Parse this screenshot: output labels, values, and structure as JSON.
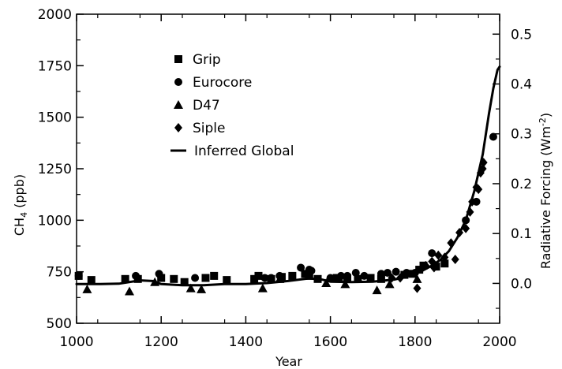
{
  "chart_data": {
    "type": "scatter",
    "title": "",
    "xlabel": "Year",
    "ylabel_main": "CH",
    "ylabel_sub": "4",
    "ylabel_unit": " (ppb)",
    "y2label_main": "Radiative Forcing (Wm",
    "y2label_sup": "-2",
    "y2label_end": ")",
    "xlim": [
      1000,
      2000
    ],
    "ylim": [
      500,
      2000
    ],
    "y2lim": [
      -0.08,
      0.54
    ],
    "xticks": [
      "1000",
      "1200",
      "1400",
      "1600",
      "1800",
      "2000"
    ],
    "xtick_values": [
      1000,
      1200,
      1400,
      1600,
      1800,
      2000
    ],
    "yticks": [
      "500",
      "750",
      "1000",
      "1250",
      "1500",
      "1750",
      "2000"
    ],
    "ytick_values": [
      500,
      750,
      1000,
      1250,
      1500,
      1750,
      2000
    ],
    "y2ticks": [
      "0.0",
      "0.1",
      "0.2",
      "0.3",
      "0.4",
      "0.5"
    ],
    "y2tick_values": [
      0.0,
      0.1,
      0.2,
      0.3,
      0.4,
      0.5
    ],
    "legend_position": "top-left",
    "grid": false,
    "series": [
      {
        "name": "Grip",
        "marker": "square",
        "points": [
          [
            1005,
            730
          ],
          [
            1035,
            710
          ],
          [
            1115,
            715
          ],
          [
            1145,
            715
          ],
          [
            1200,
            720
          ],
          [
            1230,
            715
          ],
          [
            1255,
            700
          ],
          [
            1305,
            720
          ],
          [
            1325,
            730
          ],
          [
            1355,
            710
          ],
          [
            1420,
            715
          ],
          [
            1430,
            730
          ],
          [
            1460,
            715
          ],
          [
            1485,
            725
          ],
          [
            1510,
            730
          ],
          [
            1540,
            740
          ],
          [
            1550,
            730
          ],
          [
            1570,
            715
          ],
          [
            1615,
            720
          ],
          [
            1620,
            720
          ],
          [
            1640,
            720
          ],
          [
            1665,
            715
          ],
          [
            1695,
            720
          ],
          [
            1720,
            715
          ],
          [
            1775,
            735
          ],
          [
            1795,
            740
          ],
          [
            1810,
            760
          ],
          [
            1820,
            780
          ],
          [
            1850,
            775
          ],
          [
            1870,
            790
          ]
        ]
      },
      {
        "name": "Eurocore",
        "marker": "circle",
        "points": [
          [
            1005,
            730
          ],
          [
            1140,
            730
          ],
          [
            1195,
            740
          ],
          [
            1280,
            720
          ],
          [
            1445,
            720
          ],
          [
            1460,
            720
          ],
          [
            1480,
            730
          ],
          [
            1530,
            770
          ],
          [
            1550,
            760
          ],
          [
            1555,
            755
          ],
          [
            1600,
            720
          ],
          [
            1625,
            730
          ],
          [
            1640,
            730
          ],
          [
            1660,
            745
          ],
          [
            1680,
            730
          ],
          [
            1720,
            740
          ],
          [
            1735,
            745
          ],
          [
            1755,
            750
          ],
          [
            1780,
            745
          ],
          [
            1800,
            745
          ],
          [
            1840,
            840
          ],
          [
            1920,
            1000
          ],
          [
            1945,
            1090
          ],
          [
            1985,
            1405
          ]
        ]
      },
      {
        "name": "D47",
        "marker": "triangle",
        "points": [
          [
            1025,
            665
          ],
          [
            1125,
            655
          ],
          [
            1185,
            700
          ],
          [
            1270,
            670
          ],
          [
            1295,
            665
          ],
          [
            1440,
            670
          ],
          [
            1480,
            715
          ],
          [
            1590,
            695
          ],
          [
            1635,
            690
          ],
          [
            1710,
            660
          ],
          [
            1740,
            690
          ],
          [
            1805,
            715
          ]
        ]
      },
      {
        "name": "Siple",
        "marker": "diamond",
        "points": [
          [
            1745,
            720
          ],
          [
            1765,
            720
          ],
          [
            1780,
            740
          ],
          [
            1805,
            670
          ],
          [
            1825,
            780
          ],
          [
            1840,
            800
          ],
          [
            1845,
            770
          ],
          [
            1855,
            830
          ],
          [
            1870,
            820
          ],
          [
            1885,
            890
          ],
          [
            1895,
            810
          ],
          [
            1905,
            940
          ],
          [
            1920,
            960
          ],
          [
            1930,
            1040
          ],
          [
            1935,
            1090
          ],
          [
            1945,
            1160
          ],
          [
            1950,
            1150
          ],
          [
            1955,
            1230
          ],
          [
            1960,
            1250
          ],
          [
            1962,
            1280
          ]
        ]
      },
      {
        "name": "Inferred Global",
        "marker": "line",
        "points": [
          [
            1000,
            690
          ],
          [
            1050,
            690
          ],
          [
            1100,
            692
          ],
          [
            1150,
            708
          ],
          [
            1180,
            705
          ],
          [
            1200,
            690
          ],
          [
            1250,
            685
          ],
          [
            1300,
            685
          ],
          [
            1350,
            690
          ],
          [
            1400,
            690
          ],
          [
            1450,
            695
          ],
          [
            1500,
            705
          ],
          [
            1550,
            718
          ],
          [
            1580,
            712
          ],
          [
            1600,
            702
          ],
          [
            1650,
            700
          ],
          [
            1700,
            702
          ],
          [
            1750,
            712
          ],
          [
            1780,
            725
          ],
          [
            1800,
            740
          ],
          [
            1820,
            758
          ],
          [
            1840,
            780
          ],
          [
            1860,
            808
          ],
          [
            1880,
            850
          ],
          [
            1900,
            915
          ],
          [
            1920,
            1000
          ],
          [
            1940,
            1140
          ],
          [
            1960,
            1320
          ],
          [
            1975,
            1520
          ],
          [
            1985,
            1640
          ],
          [
            1995,
            1730
          ],
          [
            2000,
            1745
          ]
        ]
      }
    ]
  }
}
